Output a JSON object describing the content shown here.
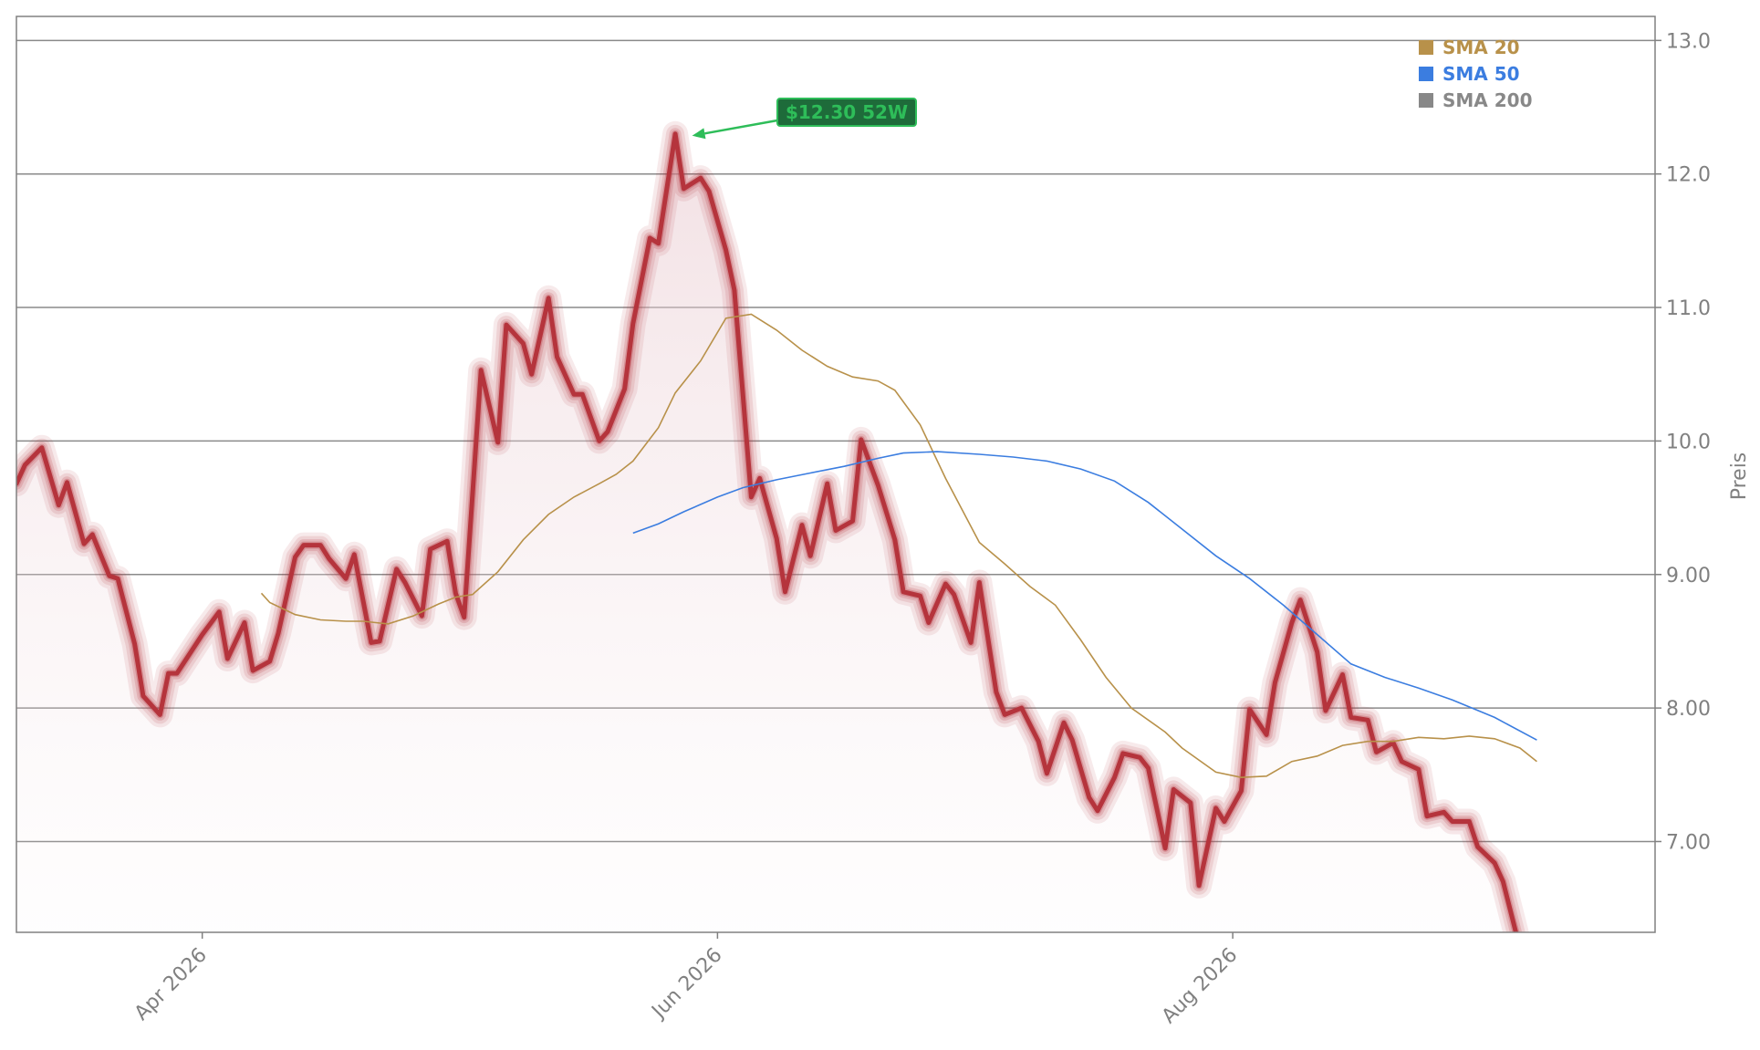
{
  "chart_data": {
    "type": "line",
    "ylabel": "Preis",
    "ylim": [
      6.32,
      13.18
    ],
    "yticks": [
      7.0,
      8.0,
      9.0,
      10.0,
      11.0,
      12.0,
      13.0
    ],
    "ytick_labels": [
      "7.00",
      "8.00",
      "9.00",
      "10.0",
      "11.0",
      "12.0",
      "13.0"
    ],
    "xlim": [
      "2026-03-10",
      "2026-09-20"
    ],
    "xticks": [
      "2026-04-01",
      "2026-06-01",
      "2026-08-01"
    ],
    "xtick_labels": [
      "Apr 2026",
      "Jun 2026",
      "Aug 2026"
    ],
    "grid": "horizontal",
    "legend_position": "top-right",
    "colors": {
      "price": "#b5343c",
      "price_glow": "#f3dde1",
      "sma20": "#b8914a",
      "sma50": "#3b7de0",
      "sma200": "#888888",
      "annotation": "#2ebd59",
      "axis": "#808080"
    },
    "legend": [
      {
        "label": "SMA 20",
        "color": "#b8914a"
      },
      {
        "label": "SMA 50",
        "color": "#3b7de0"
      },
      {
        "label": "SMA 200",
        "color": "#888888"
      }
    ],
    "annotation": {
      "label": "$12.30 52W",
      "x": "2026-05-29",
      "y": 12.3
    },
    "series": [
      {
        "role": "price",
        "points": [
          [
            "2026-03-10",
            9.68
          ],
          [
            "2026-03-11",
            9.82
          ],
          [
            "2026-03-13",
            9.95
          ],
          [
            "2026-03-15",
            9.52
          ],
          [
            "2026-03-16",
            9.69
          ],
          [
            "2026-03-18",
            9.23
          ],
          [
            "2026-03-19",
            9.3
          ],
          [
            "2026-03-21",
            8.99
          ],
          [
            "2026-03-22",
            8.97
          ],
          [
            "2026-03-24",
            8.48
          ],
          [
            "2026-03-25",
            8.09
          ],
          [
            "2026-03-27",
            7.95
          ],
          [
            "2026-03-28",
            8.26
          ],
          [
            "2026-03-29",
            8.26
          ],
          [
            "2026-04-01",
            8.55
          ],
          [
            "2026-04-03",
            8.72
          ],
          [
            "2026-04-04",
            8.37
          ],
          [
            "2026-04-06",
            8.64
          ],
          [
            "2026-04-07",
            8.28
          ],
          [
            "2026-04-09",
            8.35
          ],
          [
            "2026-04-10",
            8.56
          ],
          [
            "2026-04-12",
            9.13
          ],
          [
            "2026-04-13",
            9.22
          ],
          [
            "2026-04-15",
            9.22
          ],
          [
            "2026-04-16",
            9.12
          ],
          [
            "2026-04-18",
            8.97
          ],
          [
            "2026-04-19",
            9.15
          ],
          [
            "2026-04-21",
            8.49
          ],
          [
            "2026-04-22",
            8.5
          ],
          [
            "2026-04-24",
            9.04
          ],
          [
            "2026-04-25",
            8.94
          ],
          [
            "2026-04-27",
            8.69
          ],
          [
            "2026-04-28",
            9.19
          ],
          [
            "2026-04-30",
            9.25
          ],
          [
            "2026-05-01",
            8.86
          ],
          [
            "2026-05-02",
            8.68
          ],
          [
            "2026-05-04",
            10.53
          ],
          [
            "2026-05-06",
            9.99
          ],
          [
            "2026-05-07",
            10.87
          ],
          [
            "2026-05-09",
            10.73
          ],
          [
            "2026-05-10",
            10.5
          ],
          [
            "2026-05-12",
            11.07
          ],
          [
            "2026-05-13",
            10.63
          ],
          [
            "2026-05-15",
            10.35
          ],
          [
            "2026-05-16",
            10.35
          ],
          [
            "2026-05-18",
            10.0
          ],
          [
            "2026-05-19",
            10.07
          ],
          [
            "2026-05-21",
            10.39
          ],
          [
            "2026-05-22",
            10.88
          ],
          [
            "2026-05-24",
            11.52
          ],
          [
            "2026-05-25",
            11.48
          ],
          [
            "2026-05-27",
            12.3
          ],
          [
            "2026-05-28",
            11.89
          ],
          [
            "2026-05-30",
            11.97
          ],
          [
            "2026-05-31",
            11.87
          ],
          [
            "2026-06-02",
            11.43
          ],
          [
            "2026-06-03",
            11.13
          ],
          [
            "2026-06-05",
            9.58
          ],
          [
            "2026-06-06",
            9.72
          ],
          [
            "2026-06-08",
            9.27
          ],
          [
            "2026-06-09",
            8.87
          ],
          [
            "2026-06-11",
            9.37
          ],
          [
            "2026-06-12",
            9.14
          ],
          [
            "2026-06-14",
            9.68
          ],
          [
            "2026-06-15",
            9.33
          ],
          [
            "2026-06-17",
            9.4
          ],
          [
            "2026-06-18",
            10.01
          ],
          [
            "2026-06-20",
            9.67
          ],
          [
            "2026-06-22",
            9.26
          ],
          [
            "2026-06-23",
            8.87
          ],
          [
            "2026-06-25",
            8.84
          ],
          [
            "2026-06-26",
            8.64
          ],
          [
            "2026-06-28",
            8.93
          ],
          [
            "2026-06-29",
            8.85
          ],
          [
            "2026-07-01",
            8.49
          ],
          [
            "2026-07-02",
            8.94
          ],
          [
            "2026-07-04",
            8.12
          ],
          [
            "2026-07-05",
            7.95
          ],
          [
            "2026-07-07",
            8.0
          ],
          [
            "2026-07-09",
            7.75
          ],
          [
            "2026-07-10",
            7.51
          ],
          [
            "2026-07-12",
            7.89
          ],
          [
            "2026-07-13",
            7.76
          ],
          [
            "2026-07-15",
            7.33
          ],
          [
            "2026-07-16",
            7.23
          ],
          [
            "2026-07-18",
            7.48
          ],
          [
            "2026-07-19",
            7.66
          ],
          [
            "2026-07-21",
            7.63
          ],
          [
            "2026-07-22",
            7.55
          ],
          [
            "2026-07-24",
            6.95
          ],
          [
            "2026-07-25",
            7.39
          ],
          [
            "2026-07-27",
            7.29
          ],
          [
            "2026-07-28",
            6.67
          ],
          [
            "2026-07-30",
            7.25
          ],
          [
            "2026-07-31",
            7.15
          ],
          [
            "2026-08-02",
            7.38
          ],
          [
            "2026-08-03",
            7.99
          ],
          [
            "2026-08-05",
            7.8
          ],
          [
            "2026-08-06",
            8.19
          ],
          [
            "2026-08-08",
            8.64
          ],
          [
            "2026-08-09",
            8.81
          ],
          [
            "2026-08-11",
            8.42
          ],
          [
            "2026-08-12",
            7.98
          ],
          [
            "2026-08-14",
            8.25
          ],
          [
            "2026-08-15",
            7.93
          ],
          [
            "2026-08-17",
            7.91
          ],
          [
            "2026-08-18",
            7.67
          ],
          [
            "2026-08-20",
            7.74
          ],
          [
            "2026-08-21",
            7.6
          ],
          [
            "2026-08-23",
            7.54
          ],
          [
            "2026-08-24",
            7.19
          ],
          [
            "2026-08-26",
            7.22
          ],
          [
            "2026-08-27",
            7.15
          ],
          [
            "2026-08-29",
            7.15
          ],
          [
            "2026-08-30",
            6.96
          ],
          [
            "2026-09-01",
            6.84
          ],
          [
            "2026-09-02",
            6.7
          ],
          [
            "2026-09-04",
            6.2
          ]
        ]
      },
      {
        "name": "SMA 20",
        "points": [
          [
            "2026-04-08",
            8.86
          ],
          [
            "2026-04-09",
            8.79
          ],
          [
            "2026-04-12",
            8.7
          ],
          [
            "2026-04-15",
            8.66
          ],
          [
            "2026-04-18",
            8.65
          ],
          [
            "2026-04-20",
            8.65
          ],
          [
            "2026-04-23",
            8.63
          ],
          [
            "2026-04-26",
            8.69
          ],
          [
            "2026-04-29",
            8.78
          ],
          [
            "2026-05-01",
            8.83
          ],
          [
            "2026-05-03",
            8.85
          ],
          [
            "2026-05-06",
            9.02
          ],
          [
            "2026-05-09",
            9.26
          ],
          [
            "2026-05-12",
            9.45
          ],
          [
            "2026-05-15",
            9.58
          ],
          [
            "2026-05-18",
            9.68
          ],
          [
            "2026-05-20",
            9.75
          ],
          [
            "2026-05-22",
            9.85
          ],
          [
            "2026-05-25",
            10.1
          ],
          [
            "2026-05-27",
            10.36
          ],
          [
            "2026-05-30",
            10.6
          ],
          [
            "2026-06-02",
            10.92
          ],
          [
            "2026-06-05",
            10.95
          ],
          [
            "2026-06-08",
            10.83
          ],
          [
            "2026-06-11",
            10.68
          ],
          [
            "2026-06-14",
            10.56
          ],
          [
            "2026-06-17",
            10.48
          ],
          [
            "2026-06-20",
            10.45
          ],
          [
            "2026-06-22",
            10.38
          ],
          [
            "2026-06-25",
            10.12
          ],
          [
            "2026-06-28",
            9.72
          ],
          [
            "2026-07-02",
            9.24
          ],
          [
            "2026-07-05",
            9.08
          ],
          [
            "2026-07-08",
            8.91
          ],
          [
            "2026-07-11",
            8.77
          ],
          [
            "2026-07-14",
            8.51
          ],
          [
            "2026-07-17",
            8.23
          ],
          [
            "2026-07-20",
            8.0
          ],
          [
            "2026-07-24",
            7.82
          ],
          [
            "2026-07-26",
            7.7
          ],
          [
            "2026-07-30",
            7.52
          ],
          [
            "2026-08-02",
            7.48
          ],
          [
            "2026-08-05",
            7.49
          ],
          [
            "2026-08-08",
            7.6
          ],
          [
            "2026-08-11",
            7.64
          ],
          [
            "2026-08-14",
            7.72
          ],
          [
            "2026-08-17",
            7.75
          ],
          [
            "2026-08-20",
            7.75
          ],
          [
            "2026-08-23",
            7.78
          ],
          [
            "2026-08-26",
            7.77
          ],
          [
            "2026-08-29",
            7.79
          ],
          [
            "2026-09-01",
            7.77
          ],
          [
            "2026-09-04",
            7.7
          ],
          [
            "2026-09-06",
            7.6
          ]
        ]
      },
      {
        "name": "SMA 50",
        "points": [
          [
            "2026-05-22",
            9.31
          ],
          [
            "2026-05-25",
            9.38
          ],
          [
            "2026-05-28",
            9.47
          ],
          [
            "2026-06-01",
            9.58
          ],
          [
            "2026-06-04",
            9.65
          ],
          [
            "2026-06-08",
            9.71
          ],
          [
            "2026-06-12",
            9.76
          ],
          [
            "2026-06-16",
            9.81
          ],
          [
            "2026-06-20",
            9.87
          ],
          [
            "2026-06-23",
            9.91
          ],
          [
            "2026-06-27",
            9.92
          ],
          [
            "2026-07-02",
            9.9
          ],
          [
            "2026-07-06",
            9.88
          ],
          [
            "2026-07-10",
            9.85
          ],
          [
            "2026-07-14",
            9.79
          ],
          [
            "2026-07-18",
            9.7
          ],
          [
            "2026-07-22",
            9.54
          ],
          [
            "2026-07-26",
            9.34
          ],
          [
            "2026-07-30",
            9.14
          ],
          [
            "2026-08-03",
            8.97
          ],
          [
            "2026-08-07",
            8.77
          ],
          [
            "2026-08-11",
            8.55
          ],
          [
            "2026-08-15",
            8.33
          ],
          [
            "2026-08-19",
            8.23
          ],
          [
            "2026-08-23",
            8.15
          ],
          [
            "2026-08-27",
            8.06
          ],
          [
            "2026-09-01",
            7.93
          ],
          [
            "2026-09-06",
            7.76
          ]
        ]
      }
    ]
  }
}
